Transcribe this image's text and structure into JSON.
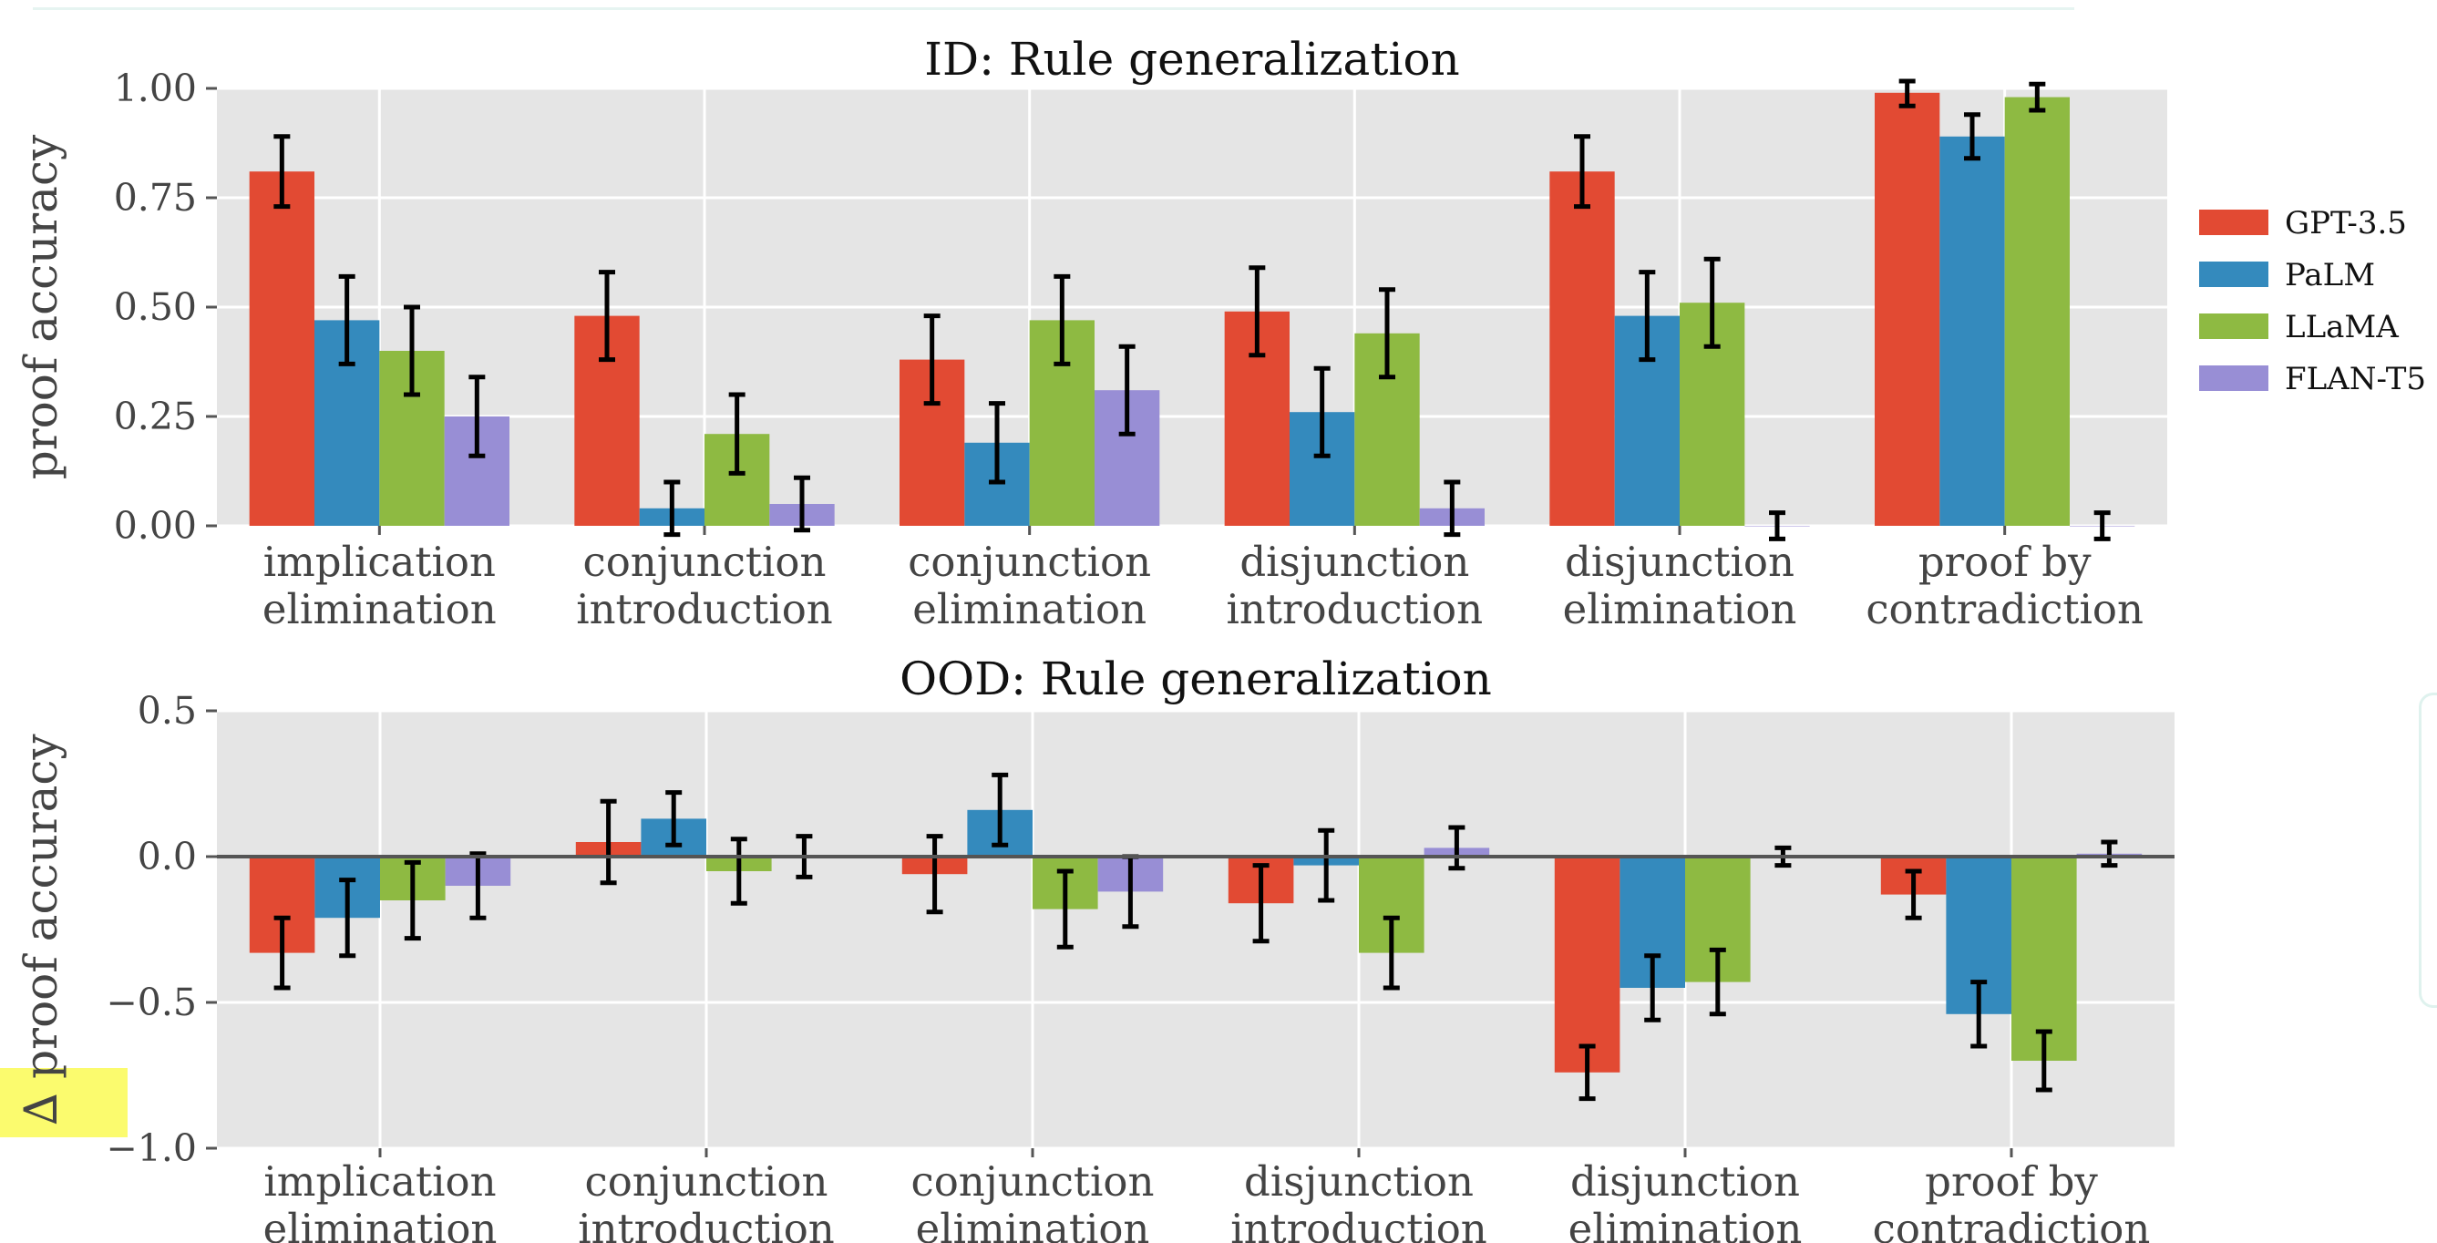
{
  "chart_data": [
    {
      "type": "bar",
      "title": "ID: Rule generalization",
      "ylabel": "proof accuracy",
      "xlabel": "",
      "ylim": [
        0,
        1
      ],
      "yticks": [
        "0.00",
        "0.25",
        "0.50",
        "0.75",
        "1.00"
      ],
      "categories": [
        [
          "implication",
          "elimination"
        ],
        [
          "conjunction",
          "introduction"
        ],
        [
          "conjunction",
          "elimination"
        ],
        [
          "disjunction",
          "introduction"
        ],
        [
          "disjunction",
          "elimination"
        ],
        [
          "proof by",
          "contradiction"
        ]
      ],
      "series": [
        {
          "name": "GPT-3.5",
          "color": "#e24a33",
          "values": [
            0.81,
            0.48,
            0.38,
            0.49,
            0.81,
            0.99
          ],
          "err": [
            0.08,
            0.1,
            0.1,
            0.1,
            0.08,
            0.03
          ]
        },
        {
          "name": "PaLM",
          "color": "#348abd",
          "values": [
            0.47,
            0.04,
            0.19,
            0.26,
            0.48,
            0.89
          ],
          "err": [
            0.1,
            0.06,
            0.09,
            0.1,
            0.1,
            0.05
          ]
        },
        {
          "name": "LLaMA",
          "color": "#8eba42",
          "values": [
            0.4,
            0.21,
            0.47,
            0.44,
            0.51,
            0.98
          ],
          "err": [
            0.1,
            0.09,
            0.1,
            0.1,
            0.1,
            0.03
          ]
        },
        {
          "name": "FLAN-T5",
          "color": "#988ed5",
          "values": [
            0.25,
            0.05,
            0.31,
            0.04,
            0.0,
            0.0
          ],
          "err": [
            0.09,
            0.06,
            0.1,
            0.06,
            0.03,
            0.03
          ]
        }
      ],
      "grid": true,
      "legend": "right"
    },
    {
      "type": "bar",
      "title": "OOD: Rule generalization",
      "ylabel": "∆ proof accuracy",
      "xlabel": "",
      "ylim": [
        -1,
        0.5
      ],
      "yticks": [
        "−1.0",
        "−0.5",
        "0.0",
        "0.5"
      ],
      "categories": [
        [
          "implication",
          "elimination"
        ],
        [
          "conjunction",
          "introduction"
        ],
        [
          "conjunction",
          "elimination"
        ],
        [
          "disjunction",
          "introduction"
        ],
        [
          "disjunction",
          "elimination"
        ],
        [
          "proof by",
          "contradiction"
        ]
      ],
      "series": [
        {
          "name": "GPT-3.5",
          "color": "#e24a33",
          "values": [
            -0.33,
            0.05,
            -0.06,
            -0.16,
            -0.74,
            -0.13
          ],
          "err": [
            0.12,
            0.14,
            0.13,
            0.13,
            0.09,
            0.08
          ]
        },
        {
          "name": "PaLM",
          "color": "#348abd",
          "values": [
            -0.21,
            0.13,
            0.16,
            -0.03,
            -0.45,
            -0.54
          ],
          "err": [
            0.13,
            0.09,
            0.12,
            0.12,
            0.11,
            0.11
          ]
        },
        {
          "name": "LLaMA",
          "color": "#8eba42",
          "values": [
            -0.15,
            -0.05,
            -0.18,
            -0.33,
            -0.43,
            -0.7
          ],
          "err": [
            0.13,
            0.11,
            0.13,
            0.12,
            0.11,
            0.1
          ]
        },
        {
          "name": "FLAN-T5",
          "color": "#988ed5",
          "values": [
            -0.1,
            0.0,
            -0.12,
            0.03,
            0.0,
            0.01
          ],
          "err": [
            0.11,
            0.07,
            0.12,
            0.07,
            0.03,
            0.04
          ]
        }
      ],
      "grid": true,
      "legend": "none"
    }
  ]
}
